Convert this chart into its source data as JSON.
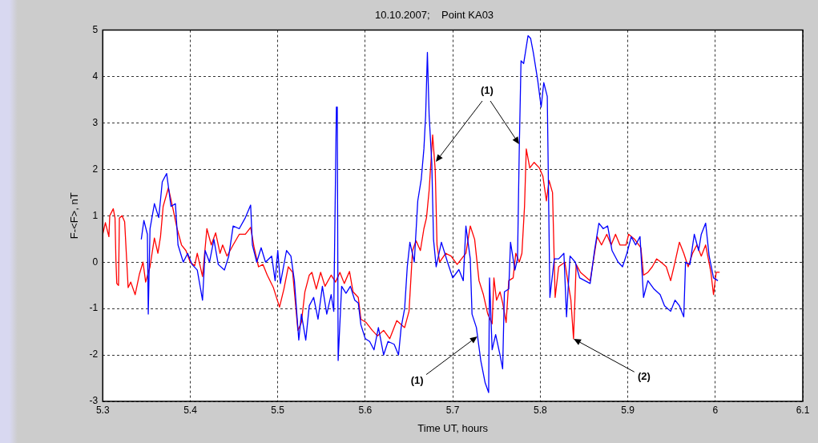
{
  "chart_data": {
    "type": "line",
    "title": "10.10.2007;    Point KA03",
    "xlabel": "Time UT, hours",
    "ylabel": "F-<F>, nT",
    "xlim": [
      5.3,
      6.1
    ],
    "xticks": [
      5.3,
      5.4,
      5.5,
      5.6,
      5.7,
      5.8,
      5.9,
      6,
      6.1
    ],
    "ylim": [
      -3,
      5
    ],
    "yticks": [
      -3,
      -2,
      -1,
      0,
      1,
      2,
      3,
      4,
      5
    ],
    "grid": true,
    "legend": false,
    "marker": "none",
    "line_style": "solid",
    "annotations": [
      "(1)",
      {
        "text": "(1)",
        "x": 5.728,
        "y": -1.6
      },
      {
        "text": "(2)",
        "x": 5.838,
        "y": -1.65
      }
    ],
    "series": [
      {
        "color": "#0000ff",
        "x": [
          5.344,
          5.347,
          5.351,
          5.352,
          5.354,
          5.359,
          5.364,
          5.368,
          5.373,
          5.378,
          5.383,
          5.386,
          5.392,
          5.397,
          5.402,
          5.408,
          5.414,
          5.417,
          5.422,
          5.427,
          5.432,
          5.439,
          5.444,
          5.449,
          5.456,
          5.463,
          5.469,
          5.471,
          5.476,
          5.481,
          5.486,
          5.493,
          5.497,
          5.5,
          5.503,
          5.51,
          5.515,
          5.519,
          5.524,
          5.527,
          5.532,
          5.536,
          5.541,
          5.546,
          5.551,
          5.556,
          5.561,
          5.564,
          5.567,
          5.568,
          5.569,
          5.573,
          5.578,
          5.583,
          5.588,
          5.592,
          5.595,
          5.6,
          5.605,
          5.61,
          5.615,
          5.621,
          5.626,
          5.633,
          5.638,
          5.641,
          5.645,
          5.648,
          5.651,
          5.656,
          5.66,
          5.664,
          5.667,
          5.669,
          5.671,
          5.673,
          5.676,
          5.678,
          5.681,
          5.687,
          5.694,
          5.7,
          5.707,
          5.712,
          5.715,
          5.72,
          5.722,
          5.727,
          5.732,
          5.737,
          5.741,
          5.742,
          5.745,
          5.749,
          5.754,
          5.757,
          5.759,
          5.764,
          5.766,
          5.771,
          5.774,
          5.776,
          5.778,
          5.781,
          5.786,
          5.789,
          5.792,
          5.797,
          5.801,
          5.804,
          5.808,
          5.811,
          5.816,
          5.821,
          5.827,
          5.83,
          5.834,
          5.84,
          5.845,
          5.857,
          5.862,
          5.867,
          5.872,
          5.877,
          5.882,
          5.889,
          5.894,
          5.899,
          5.904,
          5.909,
          5.914,
          5.918,
          5.923,
          5.93,
          5.937,
          5.942,
          5.949,
          5.954,
          5.959,
          5.964,
          5.966,
          5.971,
          5.976,
          5.981,
          5.984,
          5.989,
          5.993,
          5.998,
          6.003
        ],
        "values": [
          0.49,
          0.9,
          0.6,
          -1.12,
          0.72,
          1.26,
          0.96,
          1.73,
          1.91,
          1.2,
          1.26,
          0.37,
          0,
          0.19,
          -0.05,
          -0.17,
          -0.82,
          0.25,
          0,
          0.49,
          -0.05,
          -0.17,
          0.13,
          0.78,
          0.72,
          0.96,
          1.23,
          0.37,
          0,
          0.31,
          0,
          0.13,
          -0.4,
          0.25,
          -0.46,
          0.25,
          0.13,
          -0.4,
          -1.68,
          -1.12,
          -1.68,
          -0.94,
          -0.76,
          -1.23,
          -0.52,
          -1.12,
          -0.7,
          -1.06,
          3.34,
          3.34,
          -2.12,
          -0.52,
          -0.67,
          -0.52,
          -0.82,
          -0.88,
          -1.35,
          -1.65,
          -1.71,
          -1.89,
          -1.41,
          -2,
          -1.71,
          -1.77,
          -2,
          -1.41,
          -1,
          -0.1,
          0.43,
          0,
          1.32,
          1.79,
          2.44,
          3.16,
          4.52,
          3.16,
          2.15,
          0.49,
          -0.1,
          0.43,
          0,
          -0.34,
          -0.16,
          -0.4,
          0.78,
          0.07,
          -1.12,
          -1.41,
          -2.12,
          -2.6,
          -2.81,
          -0.34,
          -1.89,
          -1.56,
          -2,
          -2.3,
          -0.64,
          -0.58,
          0.43,
          -0.17,
          0.07,
          2.44,
          4.34,
          4.28,
          4.88,
          4.82,
          4.52,
          3.93,
          3.34,
          3.87,
          3.57,
          -0.76,
          0.07,
          0.07,
          0.19,
          -1.18,
          0.13,
          0,
          -0.34,
          -0.46,
          0.25,
          0.84,
          0.72,
          0.78,
          0.25,
          0,
          -0.1,
          0.19,
          0.55,
          0.37,
          0.55,
          -0.76,
          -0.4,
          -0.58,
          -0.7,
          -0.94,
          -1.06,
          -0.82,
          -0.94,
          -1.18,
          0,
          -0.05,
          0.6,
          0.25,
          0.6,
          0.84,
          0.13,
          -0.34,
          -0.4
        ]
      },
      {
        "color": "#ff0000",
        "x": [
          5.3,
          5.303,
          5.307,
          5.308,
          5.312,
          5.314,
          5.315,
          5.316,
          5.318,
          5.319,
          5.322,
          5.325,
          5.329,
          5.332,
          5.337,
          5.342,
          5.346,
          5.349,
          5.354,
          5.359,
          5.363,
          5.366,
          5.369,
          5.375,
          5.38,
          5.385,
          5.39,
          5.395,
          5.4,
          5.405,
          5.408,
          5.414,
          5.419,
          5.424,
          5.429,
          5.434,
          5.437,
          5.442,
          5.449,
          5.456,
          5.463,
          5.469,
          5.473,
          5.478,
          5.483,
          5.488,
          5.495,
          5.502,
          5.507,
          5.512,
          5.517,
          5.523,
          5.527,
          5.531,
          5.536,
          5.539,
          5.544,
          5.549,
          5.554,
          5.561,
          5.566,
          5.571,
          5.576,
          5.582,
          5.586,
          5.592,
          5.595,
          5.601,
          5.608,
          5.614,
          5.621,
          5.628,
          5.636,
          5.645,
          5.65,
          5.654,
          5.658,
          5.663,
          5.667,
          5.67,
          5.673,
          5.677,
          5.68,
          5.682,
          5.685,
          5.692,
          5.698,
          5.705,
          5.715,
          5.72,
          5.725,
          5.73,
          5.735,
          5.74,
          5.745,
          5.747,
          5.75,
          5.754,
          5.757,
          5.761,
          5.764,
          5.769,
          5.772,
          5.776,
          5.779,
          5.782,
          5.784,
          5.788,
          5.793,
          5.799,
          5.803,
          5.807,
          5.81,
          5.814,
          5.817,
          5.821,
          5.828,
          5.835,
          5.838,
          5.841,
          5.846,
          5.857,
          5.862,
          5.865,
          5.87,
          5.876,
          5.881,
          5.886,
          5.891,
          5.898,
          5.901,
          5.908,
          5.915,
          5.918,
          5.923,
          5.928,
          5.933,
          5.938,
          5.944,
          5.949,
          5.954,
          5.959,
          5.964,
          5.969,
          5.974,
          5.979,
          5.984,
          5.989,
          5.995,
          5.998,
          6.001,
          6.005
        ],
        "values": [
          0.6,
          0.85,
          0.55,
          1,
          1.15,
          0.95,
          0.07,
          -0.46,
          -0.5,
          0.95,
          1,
          0.87,
          -0.55,
          -0.43,
          -0.7,
          -0.25,
          0,
          -0.43,
          -0.1,
          0.52,
          0.19,
          0.55,
          1.2,
          1.6,
          1.17,
          0.72,
          0.37,
          0.25,
          0,
          -0.08,
          0.19,
          -0.31,
          0.72,
          0.37,
          0.63,
          0.19,
          0.37,
          0.13,
          0.37,
          0.6,
          0.6,
          0.75,
          0.31,
          -0.1,
          -0.05,
          -0.28,
          -0.55,
          -0.97,
          -0.58,
          -0.1,
          -0.22,
          -1.47,
          -1.3,
          -0.64,
          -0.28,
          -0.22,
          -0.58,
          -0.22,
          -0.52,
          -0.28,
          -0.43,
          -0.22,
          -0.46,
          -0.2,
          -0.64,
          -0.76,
          -1.23,
          -1.3,
          -1.47,
          -1.59,
          -1.47,
          -1.65,
          -1.26,
          -1.41,
          -1.06,
          0.25,
          0.46,
          0.25,
          0.72,
          0.96,
          1.55,
          2.74,
          1.97,
          0.37,
          0,
          0.19,
          0.13,
          -0.05,
          0.19,
          0.78,
          0.49,
          -0.4,
          -0.7,
          -1.12,
          -1.33,
          -0.34,
          -0.82,
          -0.64,
          -0.88,
          -1.3,
          -0.4,
          -0.34,
          0.19,
          0,
          0.19,
          1.2,
          2.44,
          2.03,
          2.15,
          2.03,
          1.85,
          1.32,
          1.76,
          1.5,
          -0.76,
          -0.1,
          0,
          -0.82,
          -1.65,
          -0.05,
          -0.22,
          -0.4,
          0.19,
          0.55,
          0.37,
          0.6,
          0.37,
          0.6,
          0.37,
          0.37,
          0.6,
          0.49,
          0.31,
          -0.28,
          -0.22,
          -0.1,
          0.07,
          0,
          -0.1,
          -0.4,
          0,
          0.43,
          0.19,
          -0.1,
          0.19,
          0.37,
          0.13,
          0.37,
          -0.22,
          -0.7,
          -0.22,
          -0.22
        ]
      }
    ]
  }
}
